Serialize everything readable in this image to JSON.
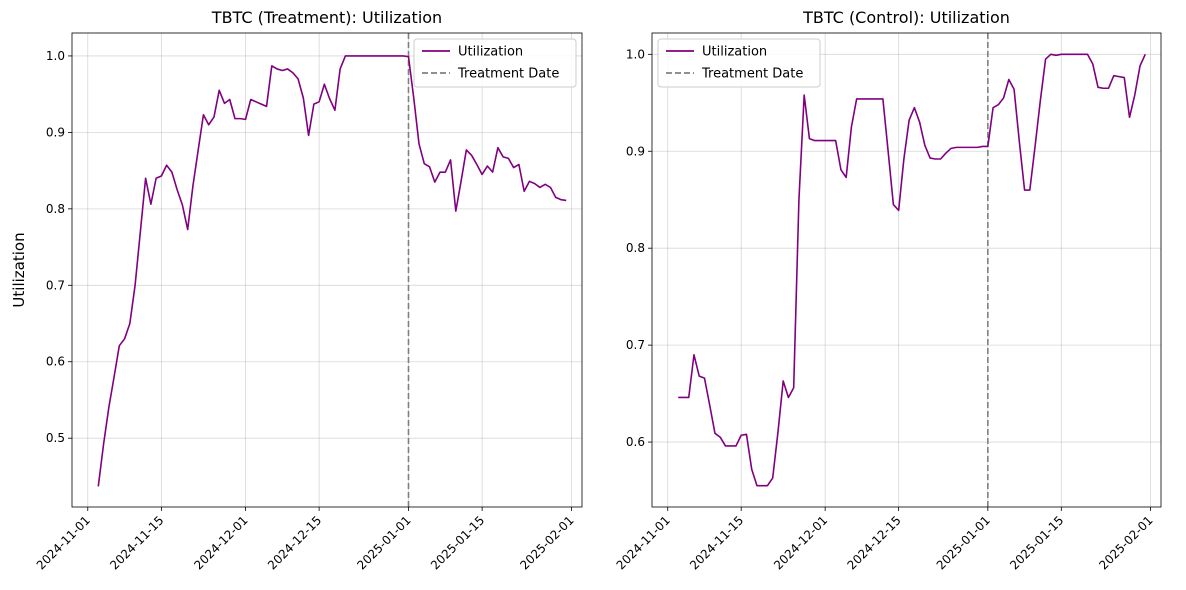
{
  "chart_data": [
    {
      "type": "line",
      "title": "TBTC (Treatment): Utilization",
      "xlabel": "",
      "ylabel": "Utilization",
      "xlim": [
        "2024-10-29",
        "2025-02-03"
      ],
      "ylim": [
        0.41,
        1.03
      ],
      "grid": true,
      "legend_position": "top-right",
      "x_ticks": [
        "2024-11-01",
        "2024-11-15",
        "2024-12-01",
        "2024-12-15",
        "2025-01-01",
        "2025-01-15",
        "2025-02-01"
      ],
      "y_ticks": [
        0.5,
        0.6,
        0.7,
        0.8,
        0.9,
        1.0
      ],
      "y_tick_labels": [
        "0.5",
        "0.6",
        "0.7",
        "0.8",
        "0.9",
        "1.0"
      ],
      "treatment_date": "2025-01-01",
      "legend": [
        "Utilization",
        "Treatment Date"
      ],
      "series": [
        {
          "name": "Utilization",
          "color": "#800080",
          "x": [
            "2024-11-03",
            "2024-11-04",
            "2024-11-05",
            "2024-11-06",
            "2024-11-07",
            "2024-11-08",
            "2024-11-09",
            "2024-11-10",
            "2024-11-11",
            "2024-11-12",
            "2024-11-13",
            "2024-11-14",
            "2024-11-15",
            "2024-11-16",
            "2024-11-17",
            "2024-11-18",
            "2024-11-19",
            "2024-11-20",
            "2024-11-21",
            "2024-11-22",
            "2024-11-23",
            "2024-11-24",
            "2024-11-25",
            "2024-11-26",
            "2024-11-27",
            "2024-11-28",
            "2024-11-29",
            "2024-11-30",
            "2024-12-01",
            "2024-12-02",
            "2024-12-03",
            "2024-12-04",
            "2024-12-05",
            "2024-12-06",
            "2024-12-07",
            "2024-12-08",
            "2024-12-09",
            "2024-12-10",
            "2024-12-11",
            "2024-12-12",
            "2024-12-13",
            "2024-12-14",
            "2024-12-15",
            "2024-12-16",
            "2024-12-17",
            "2024-12-18",
            "2024-12-19",
            "2024-12-20",
            "2024-12-21",
            "2024-12-22",
            "2024-12-23",
            "2024-12-24",
            "2024-12-25",
            "2024-12-26",
            "2024-12-27",
            "2024-12-28",
            "2024-12-29",
            "2024-12-30",
            "2024-12-31",
            "2025-01-01",
            "2025-01-02",
            "2025-01-03",
            "2025-01-04",
            "2025-01-05",
            "2025-01-06",
            "2025-01-07",
            "2025-01-08",
            "2025-01-09",
            "2025-01-10",
            "2025-01-11",
            "2025-01-12",
            "2025-01-13",
            "2025-01-14",
            "2025-01-15",
            "2025-01-16",
            "2025-01-17",
            "2025-01-18",
            "2025-01-19",
            "2025-01-20",
            "2025-01-21",
            "2025-01-22",
            "2025-01-23",
            "2025-01-24",
            "2025-01-25",
            "2025-01-26",
            "2025-01-27",
            "2025-01-28",
            "2025-01-29",
            "2025-01-30",
            "2025-01-31"
          ],
          "values": [
            0.437,
            0.492,
            0.54,
            0.58,
            0.621,
            0.63,
            0.65,
            0.7,
            0.77,
            0.84,
            0.806,
            0.84,
            0.843,
            0.857,
            0.848,
            0.825,
            0.805,
            0.773,
            0.83,
            0.877,
            0.923,
            0.91,
            0.92,
            0.955,
            0.938,
            0.943,
            0.918,
            0.918,
            0.917,
            0.943,
            0.94,
            0.937,
            0.934,
            0.987,
            0.983,
            0.981,
            0.983,
            0.978,
            0.97,
            0.945,
            0.896,
            0.937,
            0.94,
            0.963,
            0.944,
            0.929,
            0.983,
            1.0,
            1.0,
            1.0,
            1.0,
            1.0,
            1.0,
            1.0,
            1.0,
            1.0,
            1.0,
            1.0,
            1.0,
            0.999,
            0.945,
            0.885,
            0.859,
            0.855,
            0.835,
            0.848,
            0.848,
            0.864,
            0.797,
            0.836,
            0.877,
            0.87,
            0.858,
            0.845,
            0.856,
            0.848,
            0.88,
            0.868,
            0.866,
            0.854,
            0.858,
            0.823,
            0.836,
            0.833,
            0.828,
            0.832,
            0.828,
            0.815,
            0.812,
            0.811
          ]
        }
      ]
    },
    {
      "type": "line",
      "title": "TBTC (Control): Utilization",
      "xlabel": "",
      "ylabel": "",
      "xlim": [
        "2024-10-29",
        "2025-02-03"
      ],
      "ylim": [
        0.533,
        1.022
      ],
      "grid": true,
      "legend_position": "top-left",
      "x_ticks": [
        "2024-11-01",
        "2024-11-15",
        "2024-12-01",
        "2024-12-15",
        "2025-01-01",
        "2025-01-15",
        "2025-02-01"
      ],
      "y_ticks": [
        0.6,
        0.7,
        0.8,
        0.9,
        1.0
      ],
      "y_tick_labels": [
        "0.6",
        "0.7",
        "0.8",
        "0.9",
        "1.0"
      ],
      "treatment_date": "2025-01-01",
      "legend": [
        "Utilization",
        "Treatment Date"
      ],
      "series": [
        {
          "name": "Utilization",
          "color": "#800080",
          "x": [
            "2024-11-03",
            "2024-11-04",
            "2024-11-05",
            "2024-11-06",
            "2024-11-07",
            "2024-11-08",
            "2024-11-09",
            "2024-11-10",
            "2024-11-11",
            "2024-11-12",
            "2024-11-13",
            "2024-11-14",
            "2024-11-15",
            "2024-11-16",
            "2024-11-17",
            "2024-11-18",
            "2024-11-19",
            "2024-11-20",
            "2024-11-21",
            "2024-11-22",
            "2024-11-23",
            "2024-11-24",
            "2024-11-25",
            "2024-11-26",
            "2024-11-27",
            "2024-11-28",
            "2024-11-29",
            "2024-11-30",
            "2024-12-01",
            "2024-12-02",
            "2024-12-03",
            "2024-12-04",
            "2024-12-05",
            "2024-12-06",
            "2024-12-07",
            "2024-12-08",
            "2024-12-09",
            "2024-12-10",
            "2024-12-11",
            "2024-12-12",
            "2024-12-13",
            "2024-12-14",
            "2024-12-15",
            "2024-12-16",
            "2024-12-17",
            "2024-12-18",
            "2024-12-19",
            "2024-12-20",
            "2024-12-21",
            "2024-12-22",
            "2024-12-23",
            "2024-12-24",
            "2024-12-25",
            "2024-12-26",
            "2024-12-27",
            "2024-12-28",
            "2024-12-29",
            "2024-12-30",
            "2024-12-31",
            "2025-01-01",
            "2025-01-02",
            "2025-01-03",
            "2025-01-04",
            "2025-01-05",
            "2025-01-06",
            "2025-01-07",
            "2025-01-08",
            "2025-01-09",
            "2025-01-10",
            "2025-01-11",
            "2025-01-12",
            "2025-01-13",
            "2025-01-14",
            "2025-01-15",
            "2025-01-16",
            "2025-01-17",
            "2025-01-18",
            "2025-01-19",
            "2025-01-20",
            "2025-01-21",
            "2025-01-22",
            "2025-01-23",
            "2025-01-24",
            "2025-01-25",
            "2025-01-26",
            "2025-01-27",
            "2025-01-28",
            "2025-01-29",
            "2025-01-30",
            "2025-01-31"
          ],
          "values": [
            0.646,
            0.646,
            0.646,
            0.69,
            0.668,
            0.666,
            0.638,
            0.609,
            0.605,
            0.596,
            0.596,
            0.596,
            0.607,
            0.608,
            0.572,
            0.555,
            0.555,
            0.555,
            0.563,
            0.61,
            0.663,
            0.646,
            0.656,
            0.85,
            0.958,
            0.913,
            0.911,
            0.911,
            0.911,
            0.911,
            0.911,
            0.881,
            0.873,
            0.925,
            0.954,
            0.954,
            0.954,
            0.954,
            0.954,
            0.954,
            0.9,
            0.845,
            0.839,
            0.892,
            0.932,
            0.945,
            0.93,
            0.906,
            0.893,
            0.892,
            0.892,
            0.898,
            0.903,
            0.904,
            0.904,
            0.904,
            0.904,
            0.904,
            0.905,
            0.905,
            0.945,
            0.948,
            0.955,
            0.974,
            0.964,
            0.91,
            0.86,
            0.86,
            0.905,
            0.952,
            0.995,
            1.0,
            0.999,
            1.0,
            1.0,
            1.0,
            1.0,
            1.0,
            1.0,
            0.99,
            0.966,
            0.965,
            0.965,
            0.978,
            0.977,
            0.976,
            0.935,
            0.958,
            0.988,
            1.0
          ]
        }
      ]
    }
  ]
}
